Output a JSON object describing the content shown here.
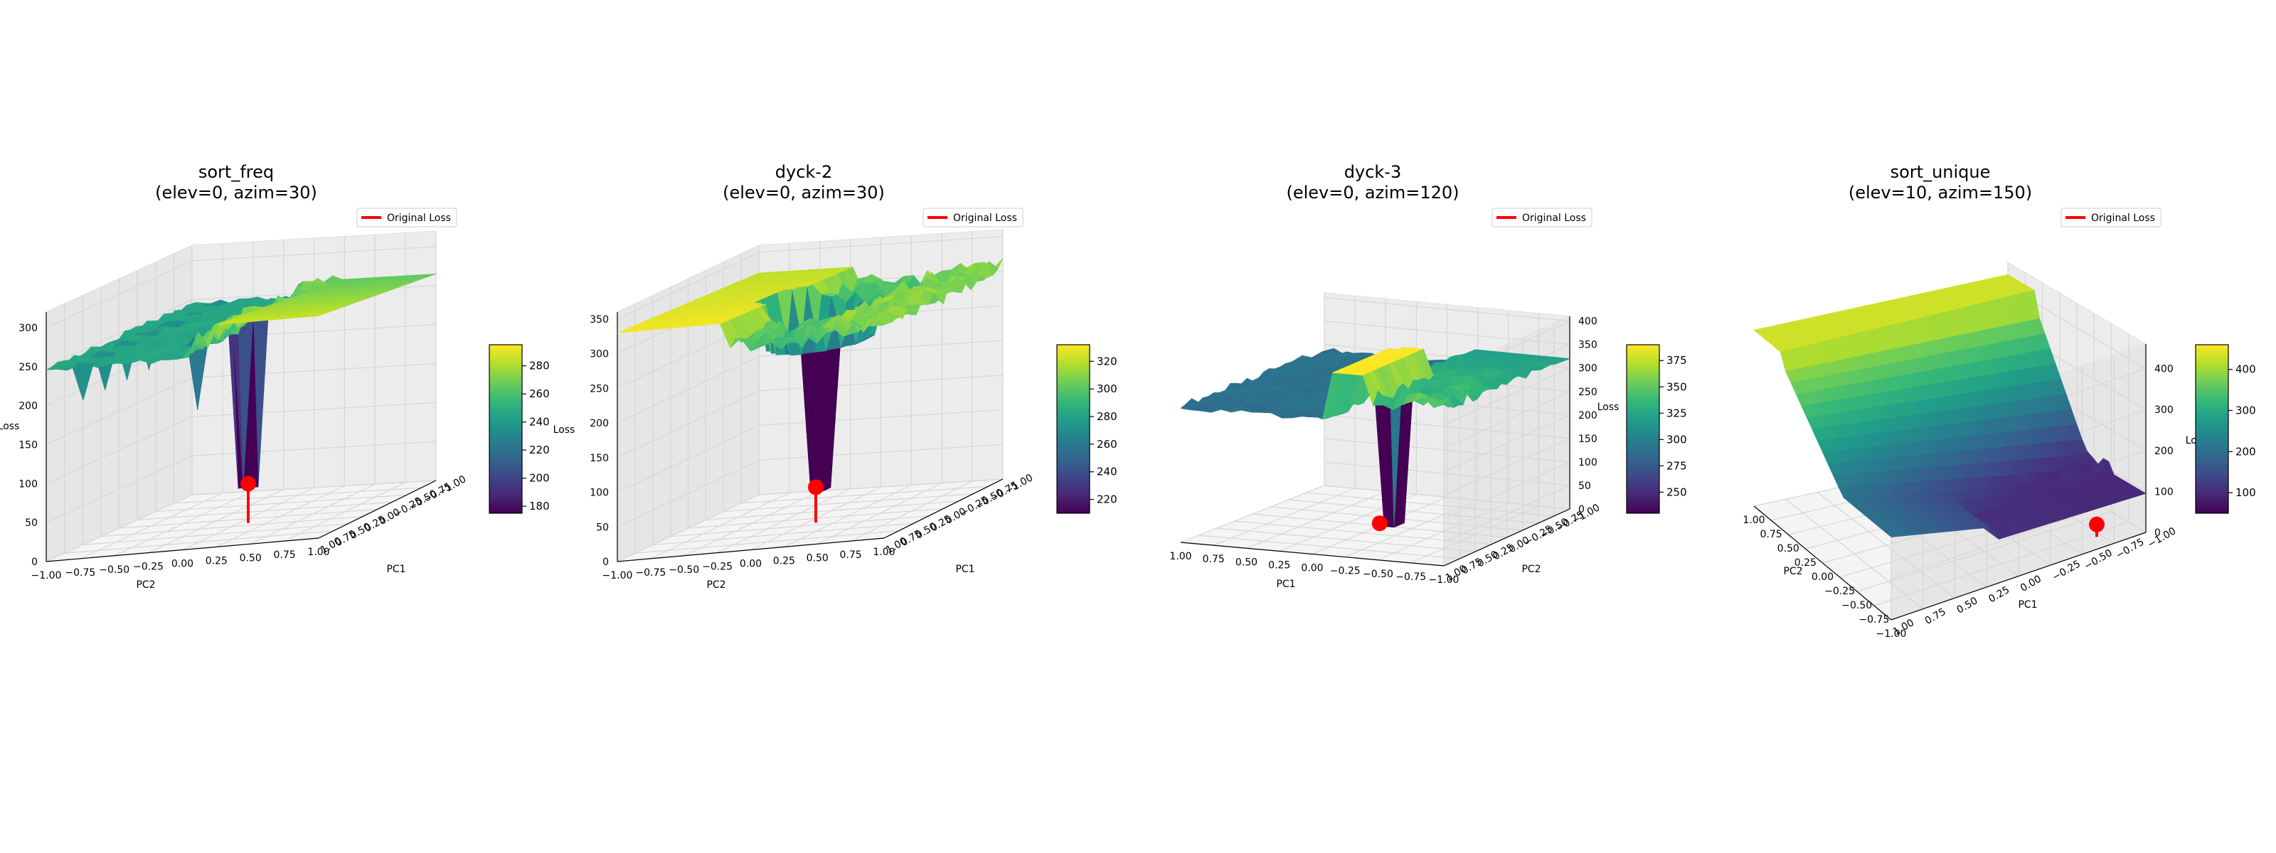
{
  "colors": {
    "viridis": [
      "#440154",
      "#482878",
      "#3e4989",
      "#31688e",
      "#26828e",
      "#1f9e89",
      "#35b779",
      "#6ece58",
      "#b5de2b",
      "#fde725"
    ],
    "marker": "#ff0000",
    "pane": "#f2f2f2",
    "grid": "#d4d4d4"
  },
  "chart_data": [
    {
      "type": "surface",
      "title": "sort_freq",
      "subtitle": "(elev=0, azim=30)",
      "view": {
        "elev": 0,
        "azim": 30
      },
      "xlabel": "PC2",
      "ylabel": "PC1",
      "zlabel": "Loss",
      "x_ticks": [
        "−1.00",
        "−0.75",
        "−0.50",
        "−0.25",
        "0.00",
        "0.25",
        "0.50",
        "0.75",
        "1.00"
      ],
      "y_ticks": [
        "1.00",
        "0.75",
        "0.50",
        "0.25",
        "0.00",
        "−0.25",
        "−0.50",
        "−0.75",
        "−1.00"
      ],
      "z_ticks": [
        "0",
        "50",
        "100",
        "150",
        "200",
        "250",
        "300"
      ],
      "zlim": [
        0,
        320
      ],
      "colorbar_ticks": [
        "180",
        "200",
        "220",
        "240",
        "260",
        "280"
      ],
      "colorbar_range": [
        175,
        295
      ],
      "legend": "Original Loss",
      "original_loss": {
        "x": 0,
        "y": 0,
        "z": 45
      }
    },
    {
      "type": "surface",
      "title": "dyck-2",
      "subtitle": "(elev=0, azim=30)",
      "view": {
        "elev": 0,
        "azim": 30
      },
      "xlabel": "PC2",
      "ylabel": "PC1",
      "zlabel": "Loss",
      "x_ticks": [
        "−1.00",
        "−0.75",
        "−0.50",
        "−0.25",
        "0.00",
        "0.25",
        "0.50",
        "0.75",
        "1.00"
      ],
      "y_ticks": [
        "1.00",
        "0.75",
        "0.50",
        "0.25",
        "0.00",
        "−0.25",
        "−0.50",
        "−0.75",
        "−1.00"
      ],
      "z_ticks": [
        "0",
        "50",
        "100",
        "150",
        "200",
        "250",
        "300",
        "350"
      ],
      "zlim": [
        0,
        360
      ],
      "colorbar_ticks": [
        "220",
        "240",
        "260",
        "280",
        "300",
        "320"
      ],
      "colorbar_range": [
        210,
        332
      ],
      "legend": "Original Loss",
      "original_loss": {
        "x": 0,
        "y": 0,
        "z": 45
      }
    },
    {
      "type": "surface",
      "title": "dyck-3",
      "subtitle": "(elev=0, azim=120)",
      "view": {
        "elev": 0,
        "azim": 120
      },
      "xlabel": "PC1",
      "ylabel": "PC2",
      "zlabel": "Loss",
      "x_ticks": [
        "1.00",
        "0.75",
        "0.50",
        "0.25",
        "0.00",
        "−0.25",
        "−0.50",
        "−0.75",
        "−1.00"
      ],
      "y_ticks": [
        "1.00",
        "0.75",
        "0.50",
        "0.25",
        "0.00",
        "−0.25",
        "−0.50",
        "−0.75",
        "−1.00"
      ],
      "z_ticks": [
        "0",
        "50",
        "100",
        "150",
        "200",
        "250",
        "300",
        "350",
        "400"
      ],
      "zlim": [
        0,
        410
      ],
      "colorbar_ticks": [
        "250",
        "275",
        "300",
        "325",
        "350",
        "375"
      ],
      "colorbar_range": [
        230,
        390
      ],
      "legend": "Original Loss",
      "original_loss": {
        "x": 0,
        "y": 0,
        "z": 5
      }
    },
    {
      "type": "surface",
      "title": "sort_unique",
      "subtitle": "(elev=10, azim=150)",
      "view": {
        "elev": 10,
        "azim": 150
      },
      "xlabel": "PC2",
      "ylabel": "PC1",
      "zlabel": "Loss",
      "x_ticks": [
        "1.00",
        "0.75",
        "0.50",
        "0.25",
        "0.00",
        "−0.25",
        "−0.50",
        "−0.75",
        "−1.00"
      ],
      "y_ticks": [
        "1.00",
        "0.75",
        "0.50",
        "0.25",
        "0.00",
        "−0.25",
        "−0.50",
        "−0.75",
        "−1.00"
      ],
      "z_ticks": [
        "0",
        "100",
        "200",
        "300",
        "400"
      ],
      "zlim": [
        0,
        460
      ],
      "colorbar_ticks": [
        "100",
        "200",
        "300",
        "400"
      ],
      "colorbar_range": [
        50,
        460
      ],
      "legend": "Original Loss",
      "original_loss": {
        "x": 0.75,
        "y": 0.75,
        "z": 20
      }
    }
  ]
}
